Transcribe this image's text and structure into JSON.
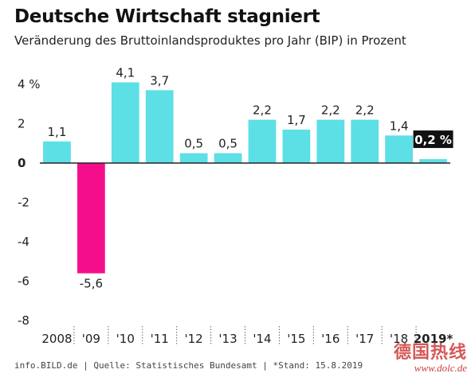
{
  "chart_data": {
    "type": "bar",
    "title": "Deutsche Wirtschaft stagniert",
    "subtitle": "Veränderung des Bruttoinlandsproduktes pro Jahr (BIP) in Prozent",
    "categories": [
      "2008",
      "'09",
      "'10",
      "'11",
      "'12",
      "'13",
      "'14",
      "'15",
      "'16",
      "'17",
      "'18",
      "2019*"
    ],
    "values": [
      1.1,
      -5.6,
      4.1,
      3.7,
      0.5,
      0.5,
      2.2,
      1.7,
      2.2,
      2.2,
      1.4,
      0.2
    ],
    "value_labels": [
      "1,1",
      "-5,6",
      "4,1",
      "3,7",
      "0,5",
      "0,5",
      "2,2",
      "1,7",
      "2,2",
      "2,2",
      "1,4",
      "0,2 %"
    ],
    "highlight_index": 11,
    "ylim": [
      -8,
      4
    ],
    "y_ticks": [
      4,
      2,
      0,
      -2,
      -4,
      -6,
      -8
    ],
    "y_tick_labels": [
      "4 %",
      "2",
      "0",
      "-2",
      "-4",
      "-6",
      "-8"
    ],
    "xlabel": "",
    "ylabel": "",
    "grid": false,
    "colors": {
      "positive": "#5ddfe6",
      "negative": "#f50e8c",
      "highlight_label_bg": "#111111",
      "highlight_label_text": "#ffffff",
      "axis": "#222222"
    }
  },
  "footer": "info.BILD.de | Quelle: Statistisches Bundesamt | *Stand: 15.8.2019",
  "watermark": {
    "chinese": "德国热线",
    "url": "www.dolc.de"
  }
}
